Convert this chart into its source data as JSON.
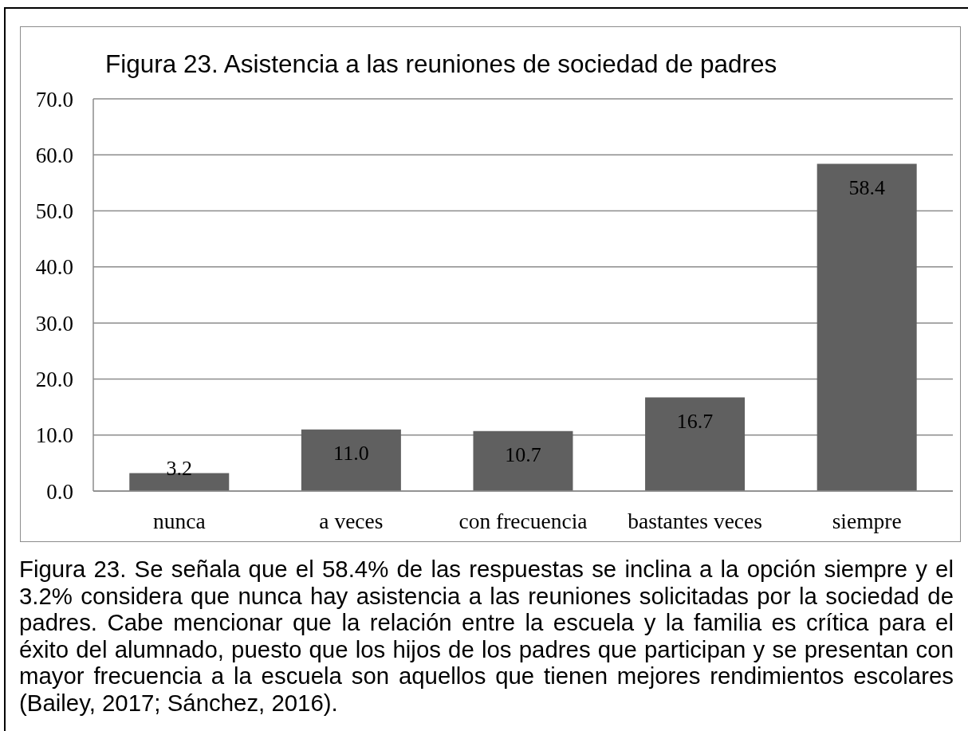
{
  "chart_data": {
    "type": "bar",
    "title": "Figura 23. Asistencia a las reuniones de sociedad de padres",
    "categories": [
      "nunca",
      "a veces",
      "con frecuencia",
      "bastantes veces",
      "siempre"
    ],
    "values": [
      3.2,
      11.0,
      10.7,
      16.7,
      58.4
    ],
    "value_labels": [
      "3.2",
      "11.0",
      "10.7",
      "16.7",
      "58.4"
    ],
    "color": "#606060",
    "ylim": [
      0,
      70
    ],
    "yticks": [
      {
        "value": 0,
        "label": "0.0"
      },
      {
        "value": 10,
        "label": "10.0"
      },
      {
        "value": 20,
        "label": "20.0"
      },
      {
        "value": 30,
        "label": "30.0"
      },
      {
        "value": 40,
        "label": "40.0"
      },
      {
        "value": 50,
        "label": "50.0"
      },
      {
        "value": 60,
        "label": "60.0"
      },
      {
        "value": 70,
        "label": "70.0"
      }
    ],
    "grid": "y",
    "annotations": [
      "Figura 23. Se señala que el 58.4% de las respuestas se inclina a la opción siempre y el 3.2% considera que nunca hay asistencia a las reuniones solicitadas por la sociedad de padres. Cabe mencionar que la relación entre la escuela y la familia es crítica para el éxito del alumnado, puesto que los hijos de los padres que participan y se presentan con mayor frecuencia a la escuela son aquellos que tienen mejores rendimientos escolares (Bailey, 2017; Sánchez, 2016)."
    ]
  }
}
